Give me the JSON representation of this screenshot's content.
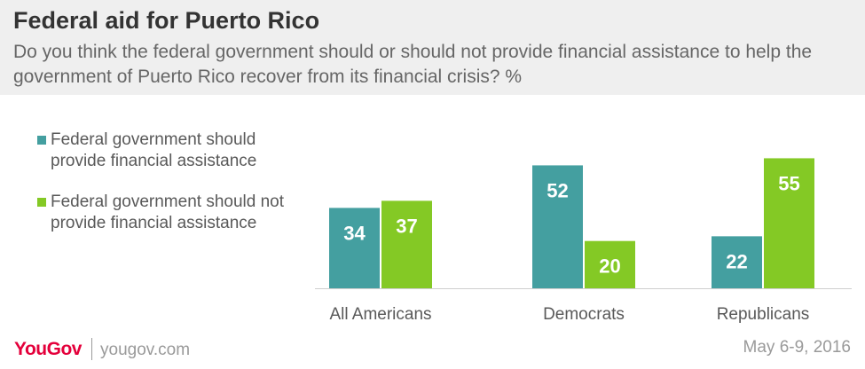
{
  "header": {
    "title": "Federal aid for Puerto Rico",
    "subtitle": "Do you think the federal government should or should not provide financial assistance to help the government of Puerto Rico recover from its financial crisis? %"
  },
  "colors": {
    "teal": "#449fa0",
    "green": "#84c925"
  },
  "chart_data": {
    "type": "bar",
    "title": "Federal aid for Puerto Rico",
    "categories": [
      "All Americans",
      "Democrats",
      "Republicans"
    ],
    "series": [
      {
        "name": "Federal government should provide financial assistance",
        "values": [
          34,
          52,
          22
        ],
        "color": "#449fa0"
      },
      {
        "name": "Federal government should not provide financial assistance",
        "values": [
          37,
          20,
          55
        ],
        "color": "#84c925"
      }
    ],
    "ylim": [
      0,
      60
    ],
    "grid": false,
    "legend_position": "left"
  },
  "legend": {
    "items": [
      {
        "label": "Federal government should provide financial assistance"
      },
      {
        "label": "Federal government should not provide financial assistance"
      }
    ]
  },
  "footer": {
    "logo": "YouGov",
    "url": "yougov.com",
    "date": "May 6-9, 2016"
  }
}
